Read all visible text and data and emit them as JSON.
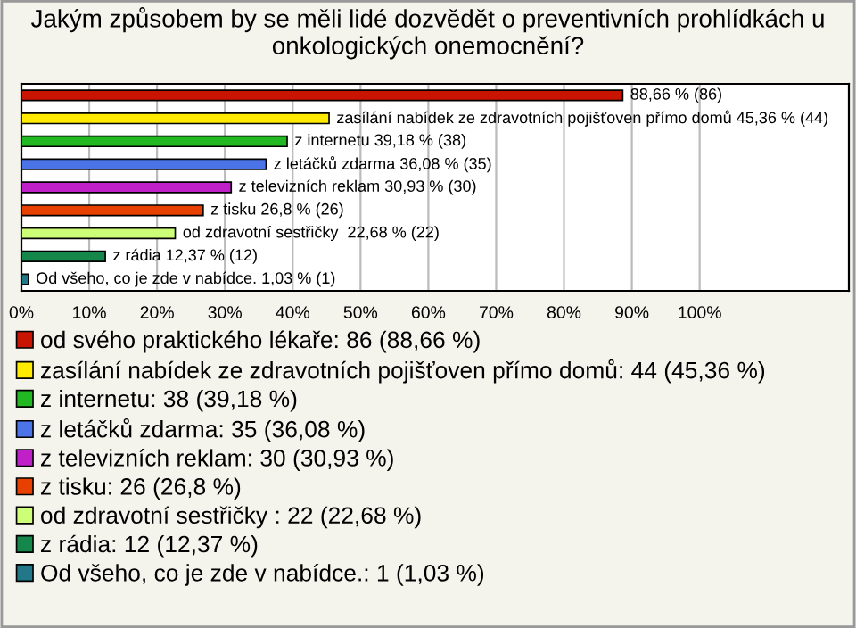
{
  "chart_data": {
    "type": "bar",
    "orientation": "horizontal",
    "title": "Jakým způsobem by se měli lidé dozvědět o preventivních prohlídkách u onkologických onemocnění?",
    "categories": [
      null,
      null,
      null,
      null,
      null,
      null,
      null,
      null,
      null
    ],
    "series": [
      {
        "name": "od svého praktického lékaře: 86 (88,66 %)",
        "color": "#c81400",
        "values": [
          88.66,
          null,
          null,
          null,
          null,
          null,
          null,
          null,
          null
        ],
        "value_labels": [
          "88,66 % (86)",
          null,
          null,
          null,
          null,
          null,
          null,
          null,
          null
        ]
      },
      {
        "name": "zasílání nabídek ze zdravotních pojišťoven přímo domů: 44 (45,36 %)",
        "color": "#ffea00",
        "values": [
          null,
          45.36,
          null,
          null,
          null,
          null,
          null,
          null,
          null
        ],
        "value_labels": [
          null,
          "zasílání nabídek ze zdravotních pojišťoven přímo domů 45,36 % (44)",
          null,
          null,
          null,
          null,
          null,
          null,
          null
        ]
      },
      {
        "name": "z internetu: 38 (39,18 %)",
        "color": "#22b822",
        "values": [
          null,
          null,
          39.18,
          null,
          null,
          null,
          null,
          null,
          null
        ],
        "value_labels": [
          null,
          null,
          "z internetu 39,18 % (38)",
          null,
          null,
          null,
          null,
          null,
          null
        ]
      },
      {
        "name": "z letáčků zdarma: 35 (36,08 %)",
        "color": "#4a74e8",
        "values": [
          null,
          null,
          null,
          36.08,
          null,
          null,
          null,
          null,
          null
        ],
        "value_labels": [
          null,
          null,
          null,
          "z letáčků zdarma 36,08 % (35)",
          null,
          null,
          null,
          null,
          null
        ]
      },
      {
        "name": "z televizních reklam: 30 (30,93 %)",
        "color": "#c020c8",
        "values": [
          null,
          null,
          null,
          null,
          30.93,
          null,
          null,
          null,
          null
        ],
        "value_labels": [
          null,
          null,
          null,
          null,
          "z televizních reklam 30,93 % (30)",
          null,
          null,
          null,
          null
        ]
      },
      {
        "name": "z tisku: 26 (26,8 %)",
        "color": "#e84000",
        "values": [
          null,
          null,
          null,
          null,
          null,
          26.8,
          null,
          null,
          null
        ],
        "value_labels": [
          null,
          null,
          null,
          null,
          null,
          "z tisku 26,8 % (26)",
          null,
          null,
          null
        ]
      },
      {
        "name": "od zdravotní sestřičky : 22 (22,68 %)",
        "color": "#ccff77",
        "values": [
          null,
          null,
          null,
          null,
          null,
          null,
          22.68,
          null,
          null
        ],
        "value_labels": [
          null,
          null,
          null,
          null,
          null,
          null,
          "od zdravotní sestřičky  22,68 % (22)",
          null,
          null
        ]
      },
      {
        "name": "z rádia: 12 (12,37 %)",
        "color": "#15874a",
        "values": [
          null,
          null,
          null,
          null,
          null,
          null,
          null,
          12.37,
          null
        ],
        "value_labels": [
          null,
          null,
          null,
          null,
          null,
          null,
          null,
          "z rádia 12,37 % (12)",
          null
        ]
      },
      {
        "name": "Od všeho, co je zde v nabídce.: 1 (1,03 %)",
        "color": "#227788",
        "values": [
          null,
          null,
          null,
          null,
          null,
          null,
          null,
          null,
          1.03
        ],
        "value_labels": [
          null,
          null,
          null,
          null,
          null,
          null,
          null,
          null,
          "Od všeho, co je zde v nabídce. 1,03 % (1)"
        ]
      }
    ],
    "xlim": [
      0,
      122
    ],
    "xticks": [
      {
        "value": 0,
        "label": "0%"
      },
      {
        "value": 10,
        "label": "10%"
      },
      {
        "value": 20,
        "label": "20%"
      },
      {
        "value": 30,
        "label": "30%"
      },
      {
        "value": 40,
        "label": "40%"
      },
      {
        "value": 50,
        "label": "50%"
      },
      {
        "value": 60,
        "label": "60%"
      },
      {
        "value": 70,
        "label": "70%"
      },
      {
        "value": 80,
        "label": "80%"
      },
      {
        "value": 90,
        "label": "90%"
      },
      {
        "value": 100,
        "label": "100%"
      }
    ],
    "grid": "x",
    "legend": "bottom"
  }
}
